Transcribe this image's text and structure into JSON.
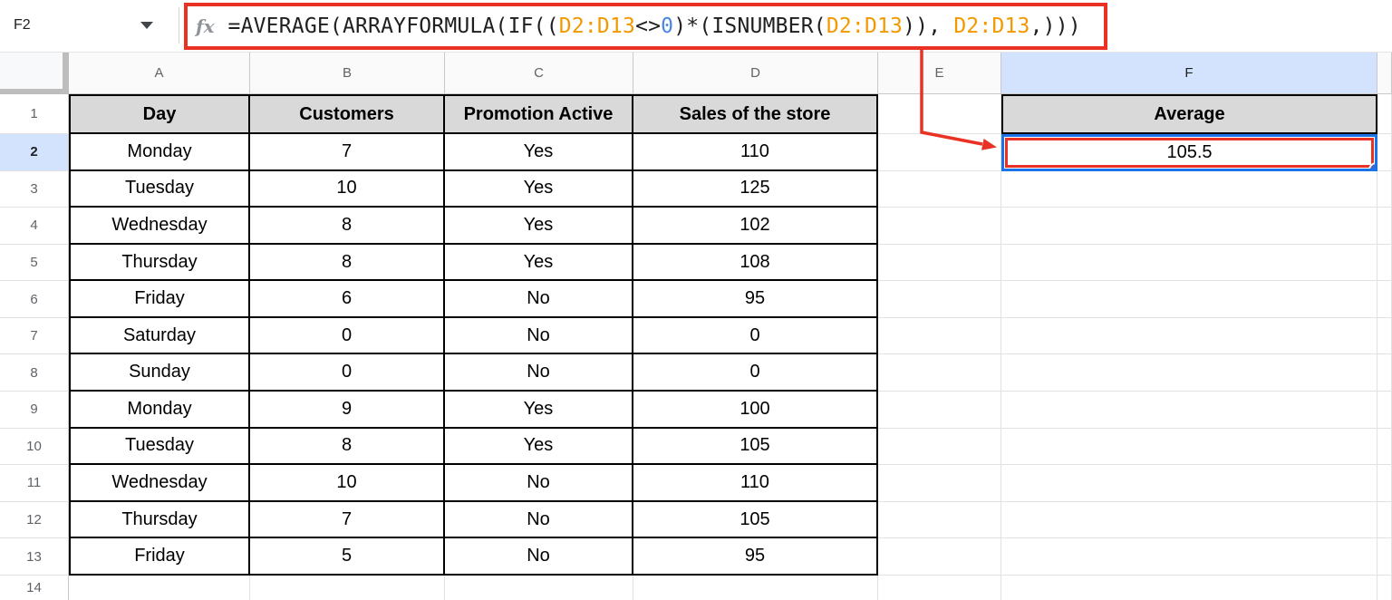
{
  "name_box": {
    "value": "F2"
  },
  "formula_bar": {
    "fx_label": "fx",
    "formula_full": "=AVERAGE(ARRAYFORMULA(IF((D2:D13<>0)*(ISNUMBER(D2:D13)), D2:D13,)))",
    "segments": [
      {
        "text": "=AVERAGE(ARRAYFORMULA(IF((",
        "color": "#1f1f1f"
      },
      {
        "text": "D2:D13",
        "color": "#f29900"
      },
      {
        "text": "<>",
        "color": "#1f1f1f"
      },
      {
        "text": "0",
        "color": "#4a86e8"
      },
      {
        "text": ")*(ISNUMBER(",
        "color": "#1f1f1f"
      },
      {
        "text": "D2:D13",
        "color": "#f29900"
      },
      {
        "text": ")), ",
        "color": "#1f1f1f"
      },
      {
        "text": "D2:D13",
        "color": "#f29900"
      },
      {
        "text": ",)))",
        "color": "#1f1f1f"
      }
    ]
  },
  "sheet": {
    "columns": [
      "A",
      "B",
      "C",
      "D",
      "E",
      "F"
    ],
    "selected_cell": "F2",
    "selected_column": "F",
    "selected_row": "2",
    "row1": {
      "num": "1",
      "a": "Day",
      "b": "Customers",
      "c": "Promotion Active",
      "d": "Sales of the store",
      "f": "Average"
    },
    "rows": [
      [
        "2",
        "Monday",
        "7",
        "Yes",
        "110"
      ],
      [
        "3",
        "Tuesday",
        "10",
        "Yes",
        "125"
      ],
      [
        "4",
        "Wednesday",
        "8",
        "Yes",
        "102"
      ],
      [
        "5",
        "Thursday",
        "8",
        "Yes",
        "108"
      ],
      [
        "6",
        "Friday",
        "6",
        "No",
        "95"
      ],
      [
        "7",
        "Saturday",
        "0",
        "No",
        "0"
      ],
      [
        "8",
        "Sunday",
        "0",
        "No",
        "0"
      ],
      [
        "9",
        "Monday",
        "9",
        "Yes",
        "100"
      ],
      [
        "10",
        "Tuesday",
        "8",
        "Yes",
        "105"
      ],
      [
        "11",
        "Wednesday",
        "10",
        "No",
        "110"
      ],
      [
        "12",
        "Thursday",
        "7",
        "No",
        "105"
      ],
      [
        "13",
        "Friday",
        "5",
        "No",
        "95"
      ]
    ],
    "f2_value": "105.5",
    "row14_num": "14"
  },
  "colors": {
    "annotation_red": "#e93223",
    "selection_blue": "#1a73e8",
    "selected_header_bg": "#d3e3fd",
    "table_header_bg": "#d9d9d9",
    "range_orange": "#f29900",
    "number_blue": "#4a86e8"
  }
}
